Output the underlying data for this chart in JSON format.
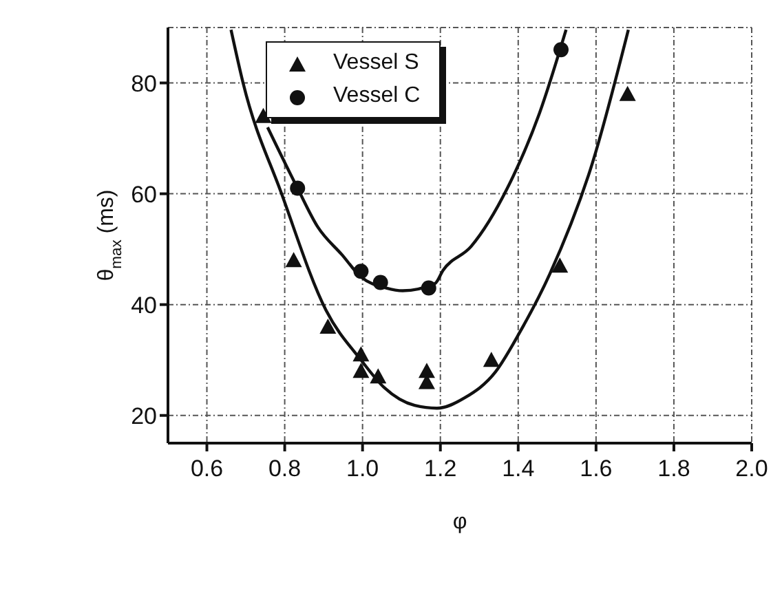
{
  "chart_data": {
    "type": "scatter",
    "xlabel": "φ",
    "ylabel": "θ$_{max}$ (ms)",
    "xlim": [
      0.5,
      2.0
    ],
    "xticks": [
      0.6,
      0.8,
      {
        "value": 1,
        "label": "1.0"
      },
      1.2,
      1.4,
      1.6,
      1.8,
      {
        "value": 2,
        "label": "2.0"
      }
    ],
    "ylim": [
      15,
      90
    ],
    "yticks": [
      20,
      40,
      60,
      80
    ],
    "grid": true,
    "legend": "top",
    "series": [
      {
        "name": "Vessel S",
        "marker": "triangle",
        "color": "#111111",
        "x": [
          0.745,
          0.823,
          0.911,
          0.996,
          0.996,
          1.04,
          1.165,
          1.165,
          1.331,
          1.507,
          1.681
        ],
        "values": [
          74,
          48,
          36,
          31,
          28,
          27,
          28,
          26,
          30,
          47,
          78
        ]
      },
      {
        "name": "Vessel C",
        "marker": "circle",
        "color": "#111111",
        "x": [
          0.833,
          0.996,
          1.046,
          1.17,
          1.51
        ],
        "values": [
          61,
          46,
          44,
          43,
          86
        ]
      },
      {
        "type": "line",
        "marker": "none",
        "color": "#111111",
        "x": [
          0.662,
          0.693,
          0.792,
          0.906,
          0.996,
          1.056,
          1.134,
          1.191,
          1.263,
          1.341,
          1.404,
          1.481,
          1.59,
          1.683
        ],
        "values": [
          89.6,
          80,
          60,
          39,
          30,
          25,
          21.8,
          21.3,
          23.2,
          27.8,
          35,
          45.5,
          65.4,
          89.6
        ]
      },
      {
        "type": "line",
        "marker": "none",
        "color": "#111111",
        "x": [
          0.756,
          0.833,
          0.885,
          0.947,
          0.996,
          1.061,
          1.103,
          1.186,
          1.207,
          1.279,
          1.372,
          1.455,
          1.523
        ],
        "values": [
          72,
          61,
          54,
          49,
          45,
          43,
          42.5,
          43.8,
          46.2,
          50.5,
          61,
          74.6,
          89.6
        ]
      }
    ]
  }
}
